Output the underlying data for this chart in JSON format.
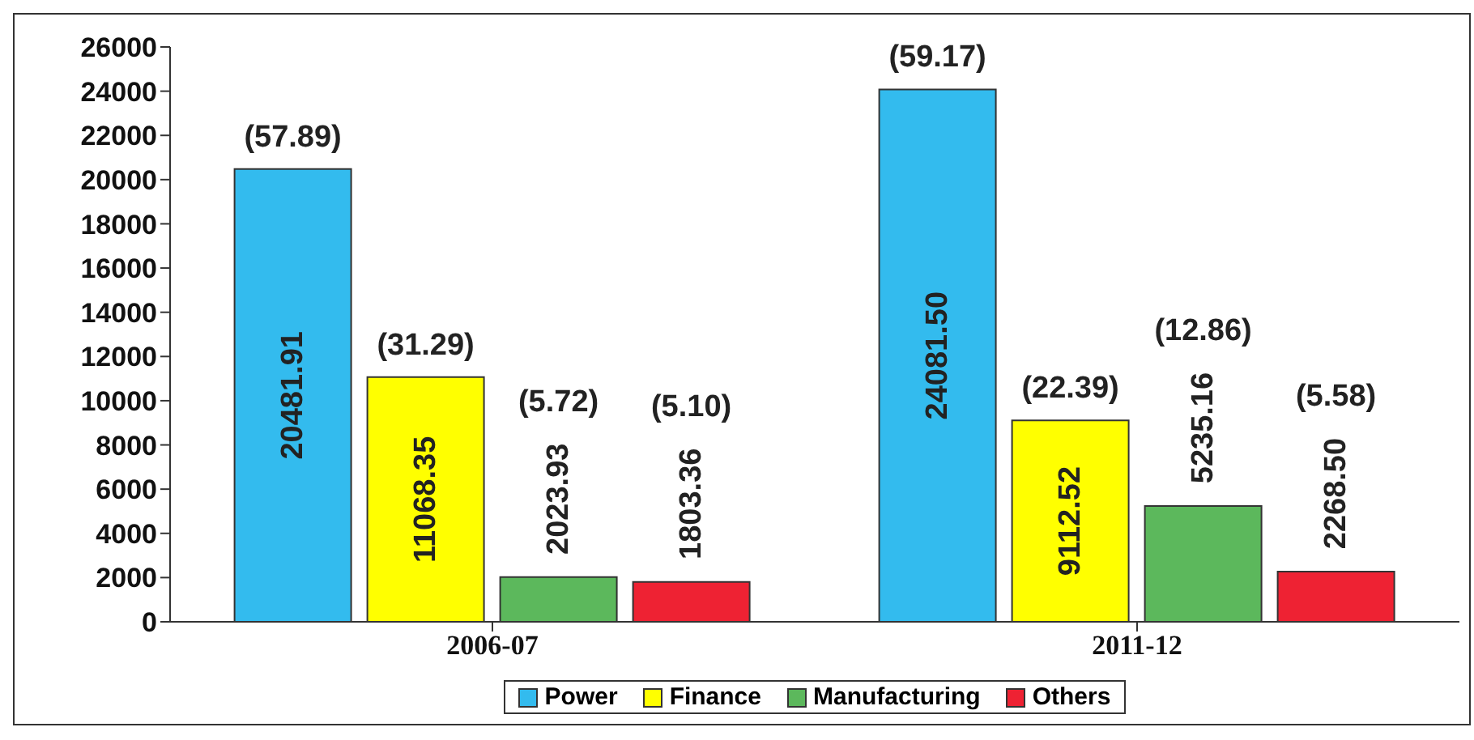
{
  "chart_data": {
    "type": "bar",
    "categories": [
      "2006-07",
      "2011-12"
    ],
    "series": [
      {
        "name": "Power",
        "color": "#33bbee",
        "values": [
          20481.91,
          24081.5
        ],
        "value_labels": [
          "20481.91",
          "24081.50"
        ]
      },
      {
        "name": "Finance",
        "color": "#ffff00",
        "values": [
          11068.35,
          9112.52
        ],
        "value_labels": [
          "11068.35",
          "9112.52"
        ]
      },
      {
        "name": "Manufacturing",
        "color": "#5cb85c",
        "values": [
          2023.93,
          5235.16
        ],
        "value_labels": [
          "2023.93",
          "5235.16"
        ]
      },
      {
        "name": "Others",
        "color": "#ee2233",
        "values": [
          1803.36,
          2268.5
        ],
        "value_labels": [
          "1803.36",
          "2268.50"
        ]
      }
    ],
    "annotations": [
      "(57.89)",
      "(31.29)",
      "(5.72)",
      "(5.10)",
      "(59.17)",
      "(22.39)",
      "(12.86)",
      "(5.58)"
    ],
    "ylim": [
      0,
      26000
    ],
    "yticks": [
      0,
      2000,
      4000,
      6000,
      8000,
      10000,
      12000,
      14000,
      16000,
      18000,
      20000,
      22000,
      24000,
      26000
    ],
    "legend": "bottom",
    "grid": false
  }
}
